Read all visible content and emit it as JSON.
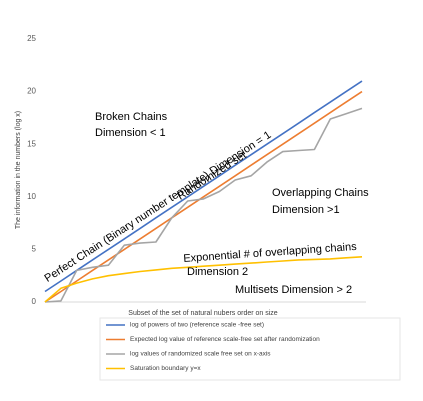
{
  "chart_data": {
    "type": "line",
    "x_label": "Subset of the set of natural  nubers order on size",
    "y_label": "The information in the numbers (log x)",
    "x": [
      0,
      1,
      2,
      3,
      4,
      5,
      6,
      7,
      8,
      9,
      10,
      11,
      12,
      13,
      14,
      15,
      16,
      17,
      18,
      19,
      20
    ],
    "xlim": [
      0,
      20
    ],
    "ylim": [
      0,
      25
    ],
    "yticks": [
      0,
      5,
      10,
      15,
      20,
      25
    ],
    "grid": false,
    "series": [
      {
        "name": "log of powers of two (reference scale -free set)",
        "color": "#4472c4",
        "values": [
          1,
          2,
          3,
          4,
          5,
          6,
          7,
          8,
          9,
          10,
          11,
          12,
          13,
          14,
          15,
          16,
          17,
          18,
          19,
          20,
          21
        ]
      },
      {
        "name": "Expected log value of reference scale-free set after randomization",
        "color": "#ed7d31",
        "values": [
          0,
          1,
          2,
          3,
          4,
          5,
          6,
          7,
          8,
          9,
          10,
          11,
          12,
          13,
          14,
          15,
          16,
          17,
          18,
          19,
          20
        ]
      },
      {
        "name": "log values of randomized scale free set on x-axis",
        "color": "#a5a5a5",
        "values": [
          0,
          0.1,
          3,
          3.3,
          3.5,
          5.4,
          5.6,
          5.7,
          8,
          9.6,
          9.8,
          10.5,
          11.6,
          12,
          13.3,
          14.3,
          14.4,
          14.5,
          17.4,
          17.9,
          18.4
        ]
      },
      {
        "name": "Saturation boundary y=x",
        "color": "#ffc000",
        "values": [
          0,
          1.3,
          1.8,
          2.2,
          2.5,
          2.7,
          2.9,
          3.05,
          3.2,
          3.3,
          3.4,
          3.5,
          3.6,
          3.7,
          3.8,
          3.9,
          4.0,
          4.05,
          4.1,
          4.2,
          4.3
        ]
      }
    ],
    "annotations": [
      "Broken Chains",
      "Dimension < 1",
      "Perfect Chain (Binary number template) Dimension = 1",
      "Randomized set",
      "Overlapping Chains",
      "Dimension >1",
      "Exponential # of overlapping chains",
      "Dimension 2",
      "Multisets Dimension > 2"
    ]
  }
}
